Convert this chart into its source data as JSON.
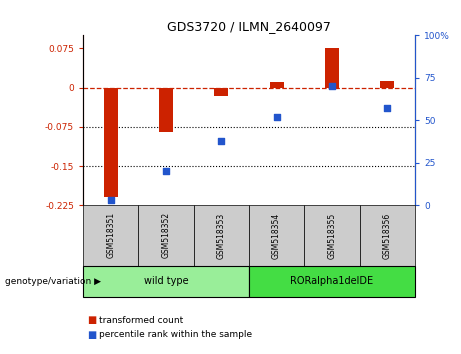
{
  "title": "GDS3720 / ILMN_2640097",
  "samples": [
    "GSM518351",
    "GSM518352",
    "GSM518353",
    "GSM518354",
    "GSM518355",
    "GSM518356"
  ],
  "transformed_count": [
    -0.21,
    -0.085,
    -0.015,
    0.01,
    0.075,
    0.013
  ],
  "percentile_rank": [
    3,
    20,
    38,
    52,
    70,
    57
  ],
  "ylim_left": [
    -0.225,
    0.1
  ],
  "ylim_right": [
    0,
    100
  ],
  "yticks_left": [
    0.075,
    0,
    -0.075,
    -0.15,
    -0.225
  ],
  "yticks_right": [
    100,
    75,
    50,
    25,
    0
  ],
  "hlines": [
    -0.075,
    -0.15
  ],
  "bar_color": "#cc2200",
  "dot_color": "#2255cc",
  "wild_type_label": "wild type",
  "ror_alpha_label": "RORalpha1delDE",
  "genotype_label": "genotype/variation",
  "legend1": "transformed count",
  "legend2": "percentile rank within the sample",
  "wild_type_color": "#99ee99",
  "ror_alpha_color": "#44dd44",
  "sample_box_color": "#cccccc",
  "bar_width": 0.25
}
